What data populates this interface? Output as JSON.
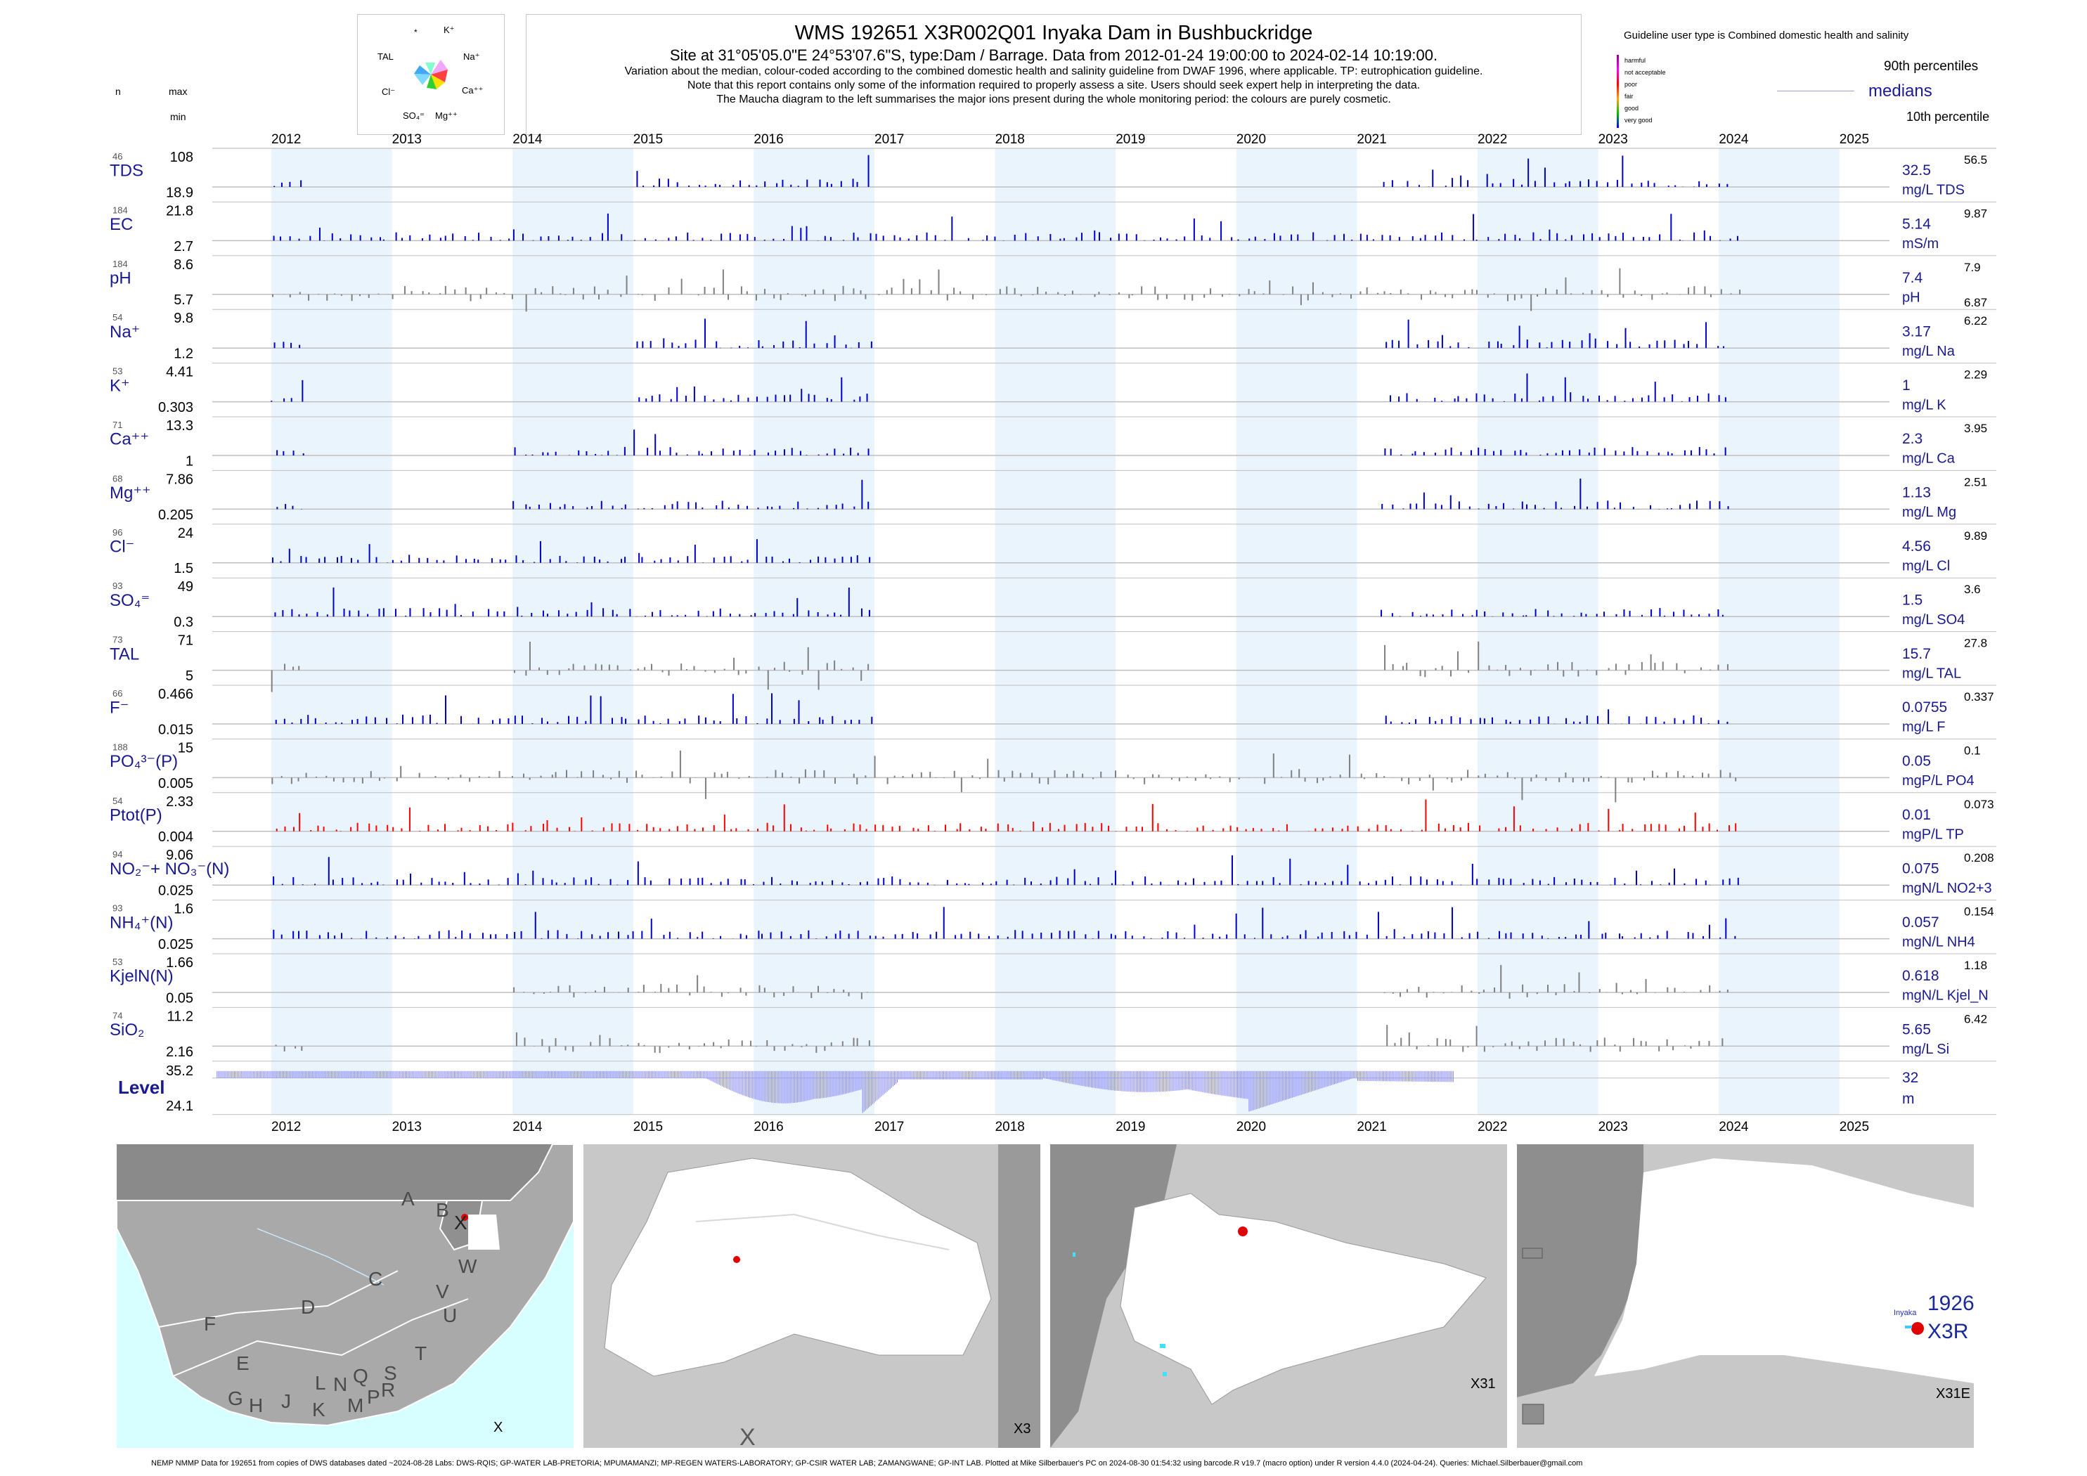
{
  "header": {
    "title": "WMS 192651 X3R002Q01 Inyaka Dam in Bushbuckridge",
    "subtitle": "Site at 31°05'05.0\"E 24°53'07.6\"S, type:Dam / Barrage.  Data from 2012-01-24 19:00:00 to 2024-02-14 10:19:00.",
    "line1": "Variation about the median,  colour-coded according to the combined domestic health and salinity guideline from DWAF 1996, where applicable. TP: eutrophication guideline.",
    "line2": "Note that this report contains only some of the information required to properly assess a site. Users should seek expert help in interpreting the data.",
    "line3": "The Maucha diagram to the left summarises the major ions present during the whole monitoring period: the colours are purely cosmetic."
  },
  "maucha": {
    "labels": [
      "*",
      "K⁺",
      "Na⁺",
      "Ca⁺⁺",
      "Mg⁺⁺",
      "SO₄⁼",
      "Cl⁻",
      "TAL"
    ]
  },
  "left_header": {
    "n": "n",
    "max": "max",
    "min": "min"
  },
  "legend": {
    "title": "Guideline user type is Combined domestic health and salinity",
    "items": [
      {
        "label": "harmful",
        "color": "#8b008b"
      },
      {
        "label": "not acceptable",
        "color": "#ff00ff"
      },
      {
        "label": "poor",
        "color": "#ff0000"
      },
      {
        "label": "fair",
        "color": "#ffa500"
      },
      {
        "label": "good",
        "color": "#00c000"
      },
      {
        "label": "very good",
        "color": "#0000ff"
      }
    ],
    "p90": "90th percentiles",
    "medians": "medians",
    "p10": "10th percentile"
  },
  "chart_data": {
    "type": "bar",
    "x_axis": {
      "years": [
        "2012",
        "2013",
        "2014",
        "2015",
        "2016",
        "2017",
        "2018",
        "2019",
        "2020",
        "2021",
        "2022",
        "2023",
        "2024",
        "2025"
      ]
    },
    "colors": {
      "very_good": "#0000cd",
      "no_guideline": "#808080",
      "poor": "#ff0000",
      "shade": "#eaf4fc",
      "level": "#8080ff"
    },
    "rows": [
      {
        "n": "46",
        "name": "TDS",
        "max": "108",
        "min": "18.9",
        "median": "32.5",
        "p90": "56.5",
        "unit": "mg/L TDS",
        "color": "blue"
      },
      {
        "n": "184",
        "name": "EC",
        "max": "21.8",
        "min": "2.7",
        "median": "5.14",
        "p90": "9.87",
        "unit": "mS/m",
        "color": "blue"
      },
      {
        "n": "184",
        "name": "pH",
        "max": "8.6",
        "min": "5.7",
        "median": "7.4",
        "p90": "7.9",
        "p10": "6.87",
        "unit": "pH",
        "color": "gray"
      },
      {
        "n": "54",
        "name": "Na⁺",
        "max": "9.8",
        "min": "1.2",
        "median": "3.17",
        "p90": "6.22",
        "unit": "mg/L Na",
        "color": "blue"
      },
      {
        "n": "53",
        "name": "K⁺",
        "max": "4.41",
        "min": "0.303",
        "median": "1",
        "p90": "2.29",
        "unit": "mg/L K",
        "color": "blue"
      },
      {
        "n": "71",
        "name": "Ca⁺⁺",
        "max": "13.3",
        "min": "1",
        "median": "2.3",
        "p90": "3.95",
        "unit": "mg/L Ca",
        "color": "blue"
      },
      {
        "n": "68",
        "name": "Mg⁺⁺",
        "max": "7.86",
        "min": "0.205",
        "median": "1.13",
        "p90": "2.51",
        "unit": "mg/L Mg",
        "color": "blue"
      },
      {
        "n": "96",
        "name": "Cl⁻",
        "max": "24",
        "min": "1.5",
        "median": "4.56",
        "p90": "9.89",
        "unit": "mg/L Cl",
        "color": "blue"
      },
      {
        "n": "93",
        "name": "SO₄⁼",
        "max": "49",
        "min": "0.3",
        "median": "1.5",
        "p90": "3.6",
        "unit": "mg/L SO4",
        "color": "blue"
      },
      {
        "n": "73",
        "name": "TAL",
        "max": "71",
        "min": "5",
        "median": "15.7",
        "p90": "27.8",
        "unit": "mg/L TAL",
        "color": "gray"
      },
      {
        "n": "66",
        "name": "F⁻",
        "max": "0.466",
        "min": "0.015",
        "median": "0.0755",
        "p90": "0.337",
        "unit": "mg/L F",
        "color": "blue"
      },
      {
        "n": "188",
        "name": "PO₄³⁻(P)",
        "max": "15",
        "min": "0.005",
        "median": "0.05",
        "p90": "0.1",
        "unit": "mgP/L PO4",
        "color": "gray"
      },
      {
        "n": "54",
        "name": "Ptot(P)",
        "max": "2.33",
        "min": "0.004",
        "median": "0.01",
        "p90": "0.073",
        "unit": "mgP/L TP",
        "color": "red"
      },
      {
        "n": "94",
        "name": "NO₂⁻+ NO₃⁻(N)",
        "max": "9.06",
        "min": "0.025",
        "median": "0.075",
        "p90": "0.208",
        "unit": "mgN/L NO2+3",
        "color": "blue"
      },
      {
        "n": "93",
        "name": "NH₄⁺(N)",
        "max": "1.6",
        "min": "0.025",
        "median": "0.057",
        "p90": "0.154",
        "unit": "mgN/L NH4",
        "color": "blue"
      },
      {
        "n": "53",
        "name": "KjelN(N)",
        "max": "1.66",
        "min": "0.05",
        "median": "0.618",
        "p90": "1.18",
        "unit": "mgN/L Kjel_N",
        "color": "gray"
      },
      {
        "n": "74",
        "name": "SiO₂",
        "max": "11.2",
        "min": "2.16",
        "median": "5.65",
        "p90": "6.42",
        "unit": "mg/L Si",
        "color": "gray"
      }
    ],
    "level": {
      "name": "Level",
      "max": "35.2",
      "min": "24.1",
      "median": "32",
      "unit": "m"
    }
  },
  "maps": {
    "panel1": {
      "label": "X",
      "letters": [
        "A",
        "B",
        "X",
        "W",
        "C",
        "V",
        "U",
        "D",
        "F",
        "T",
        "E",
        "S",
        "L",
        "N",
        "Q",
        "G",
        "H",
        "J",
        "K",
        "M",
        "P",
        "R"
      ]
    },
    "panel2": {
      "label": "X3",
      "corner": "X"
    },
    "panel3": {
      "label": "X31"
    },
    "panel4": {
      "label": "X31E",
      "river": "Inyaka",
      "site1": "1926",
      "site2": "X3R"
    }
  },
  "footer": "NEMP NMMP Data for 192651 from copies of DWS databases dated ~2024-08-28 Labs: DWS-RQIS; GP-WATER LAB-PRETORIA; MPUMAMANZI; MP-REGEN WATERS-LABORATORY; GP-CSIR WATER LAB; ZAMANGWANE; GP-INT LAB. Plotted at Mike Silberbauer's PC on 2024-08-30 01:54:32 using barcode.R v19.7 (macro option) under R version 4.4.0 (2024-04-24). Queries: Michael.Silberbauer@gmail.com"
}
